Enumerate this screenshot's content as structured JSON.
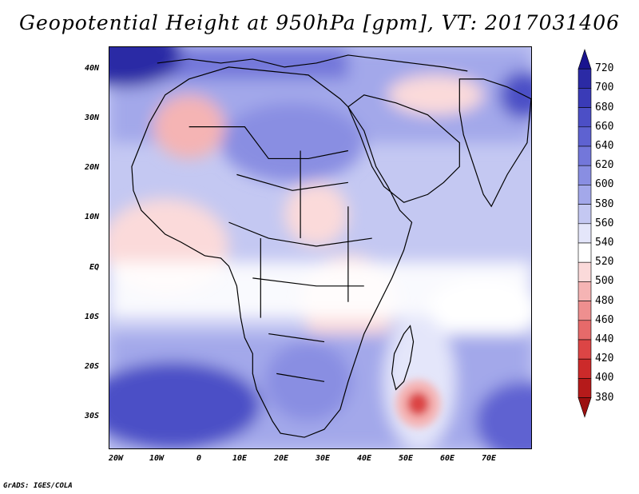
{
  "title": "Geopotential Height at 950hPa [gpm], VT: 2017031406",
  "credit": "GrADS: IGES/COLA",
  "lat_labels": [
    "40N",
    "30N",
    "20N",
    "10N",
    "EQ",
    "10S",
    "20S",
    "30S"
  ],
  "lon_labels": [
    "20W",
    "10W",
    "0",
    "10E",
    "20E",
    "30E",
    "40E",
    "50E",
    "60E",
    "70E"
  ],
  "colorbar": {
    "levels": [
      "720",
      "700",
      "680",
      "660",
      "640",
      "620",
      "600",
      "580",
      "560",
      "540",
      "520",
      "500",
      "480",
      "460",
      "440",
      "420",
      "400",
      "380"
    ],
    "colors": [
      "#1a148f",
      "#2b2aa5",
      "#3a3bb7",
      "#4c4fc6",
      "#5e62d1",
      "#7377da",
      "#898ee2",
      "#a3a8ea",
      "#c4c8f2",
      "#e4e6fa",
      "#ffffff",
      "#fbdada",
      "#f5b4b4",
      "#ee8f8f",
      "#e66a6a",
      "#dc4545",
      "#cc2a2a",
      "#b51a1a",
      "#9c1010"
    ]
  },
  "field_colors": {
    "high_deep": "#4c4fc6",
    "high_mid": "#7377da",
    "high_light": "#a3a8ea",
    "high_pale": "#c4c8f2",
    "neutral": "#ffffff",
    "low_pale": "#fbdada",
    "low_mid": "#f5b4b4",
    "low_deep": "#e66a6a",
    "low_core": "#dc4545",
    "coast": "#000000"
  }
}
